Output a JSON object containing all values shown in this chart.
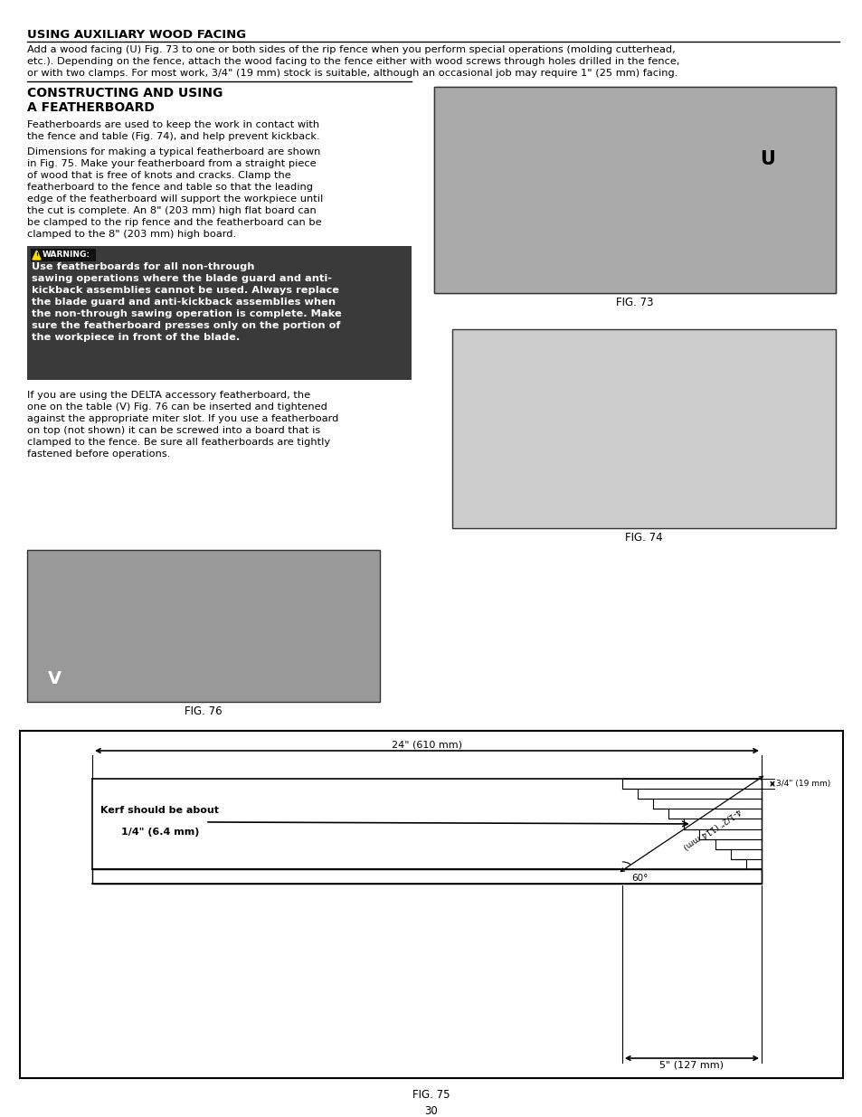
{
  "page_bg": "#ffffff",
  "page_num": "30",
  "title1": "USING AUXILIARY WOOD FACING",
  "para1": "Add a wood facing (U) Fig. 73 to one or both sides of the rip fence when you perform special operations (molding cutterhead,\netc.). Depending on the fence, attach the wood facing to the fence either with wood screws through holes drilled in the fence,\nor with two clamps. For most work, 3/4\" (19 mm) stock is suitable, although an occasional job may require 1\" (25 mm) facing.",
  "title2_line1": "CONSTRUCTING AND USING",
  "title2_line2": "A FEATHERBOARD",
  "para2": "Featherboards are used to keep the work in contact with\nthe fence and table (Fig. 74), and help prevent kickback.",
  "para3": "Dimensions for making a typical featherboard are shown\nin Fig. 75. Make your featherboard from a straight piece\nof wood that is free of knots and cracks. Clamp the\nfeatherboard to the fence and table so that the leading\nedge of the featherboard will support the workpiece until\nthe cut is complete. An 8\" (203 mm) high flat board can\nbe clamped to the rip fence and the featherboard can be\nclamped to the 8\" (203 mm) high board.",
  "warning_label": "WARNING:",
  "warning_text_bold": "Use featherboards for all non-through\nsawing operations where the blade guard and anti-\nkickback assemblies cannot be used. Always replace\nthe blade guard and anti-kickback assemblies when\nthe non-through sawing operation is complete. Make\nsure the featherboard presses only on the portion of\nthe workpiece in front of the blade.",
  "para4": "If you are using the DELTA accessory featherboard, the\none on the table (V) Fig. 76 can be inserted and tightened\nagainst the appropriate miter slot. If you use a featherboard\non top (not shown) it can be screwed into a board that is\nclamped to the fence. Be sure all featherboards are tightly\nfastened before operations.",
  "fig73_caption": "FIG. 73",
  "fig74_caption": "FIG. 74",
  "fig75_caption": "FIG. 75",
  "fig76_caption": "FIG. 76",
  "dim_24in": "24\" (610 mm)",
  "dim_5in": "5\" (127 mm)",
  "dim_34in": "3/4\" (19 mm)",
  "dim_412in": "4-1/2\" (114 mm)",
  "dim_60deg": "60°",
  "kerf_text1": "Kerf should be about",
  "kerf_text2": "1/4\" (6.4 mm)",
  "label_u": "U",
  "label_v": "V"
}
